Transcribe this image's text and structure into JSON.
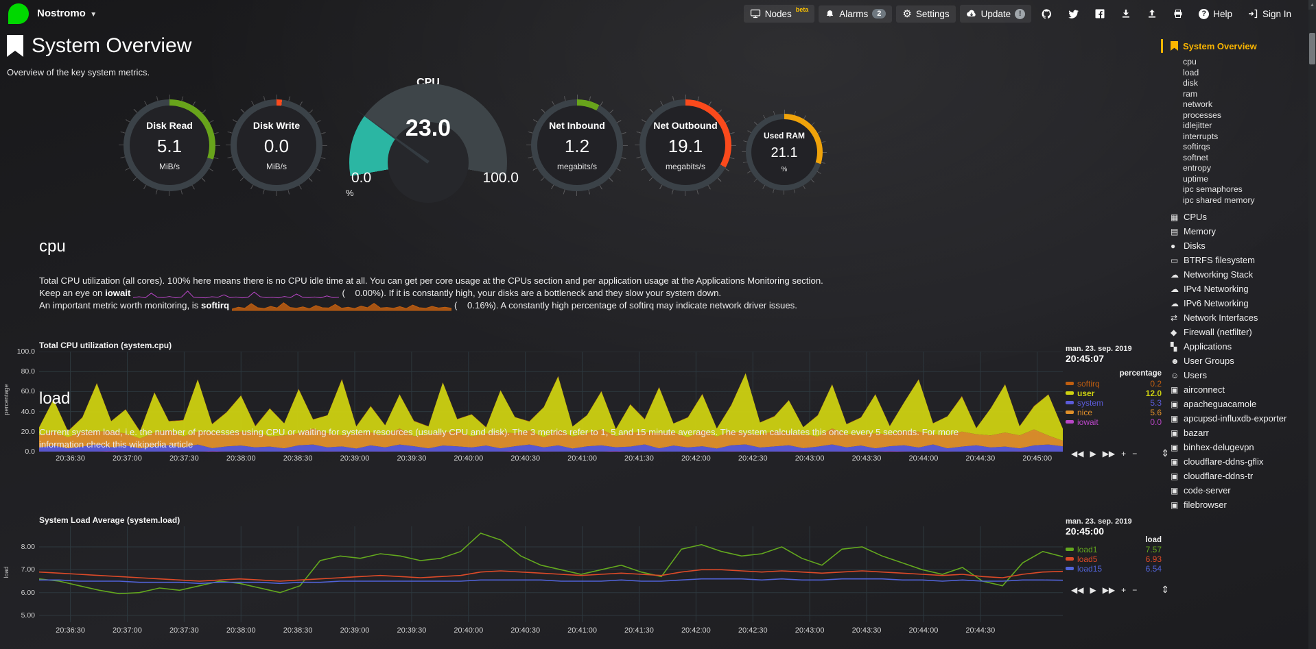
{
  "colors": {
    "accent": "#fbb600",
    "green": "#68a41b",
    "red": "#fb4a1c",
    "orange": "#f0a30a",
    "teal": "#2bb6a3",
    "track": "#3b4248"
  },
  "topbar": {
    "hostname": "Nostromo",
    "nodes_label": "Nodes",
    "nodes_beta": "beta",
    "alarms_label": "Alarms",
    "alarms_count": "2",
    "settings_label": "Settings",
    "update_label": "Update",
    "update_badge": "!",
    "help_label": "Help",
    "signin_label": "Sign In"
  },
  "header": {
    "title": "System Overview",
    "subtitle": "Overview of the key system metrics."
  },
  "gauges": [
    {
      "label": "Disk Read",
      "value": "5.1",
      "unit": "MiB/s",
      "color": "#68a41b",
      "arc_deg": 108,
      "small": false
    },
    {
      "label": "Disk Write",
      "value": "0.0",
      "unit": "MiB/s",
      "color": "#fb4a1c",
      "arc_deg": 7,
      "small": false
    },
    {
      "label": "Net Inbound",
      "value": "1.2",
      "unit": "megabits/s",
      "color": "#68a41b",
      "arc_deg": 29,
      "small": false
    },
    {
      "label": "Net Outbound",
      "value": "19.1",
      "unit": "megabits/s",
      "color": "#fb4a1c",
      "arc_deg": 119,
      "small": false
    },
    {
      "label": "Used RAM",
      "value": "21.1",
      "unit": "%",
      "color": "#f0a30a",
      "arc_deg": 108,
      "small": true
    }
  ],
  "cpu_gauge": {
    "title": "CPU",
    "value": "23.0",
    "min": "0.0",
    "max": "100.0",
    "unit": "%"
  },
  "sections": {
    "cpu": {
      "heading": "cpu",
      "d1": "Total CPU utilization (all cores). 100% here means there is no CPU idle time at all. You can get per core usage at the CPUs section and per application usage at the Applications Monitoring section.",
      "d2_pre": "Keep an eye on ",
      "d2_bold": "iowait",
      "d2_paren": "(",
      "d2_val": "0.00%",
      "d2_tail": "). If it is constantly high, your disks are a bottleneck and they slow your system down.",
      "d3_pre": "An important metric worth monitoring, is ",
      "d3_bold": "softirq",
      "d3_paren": "(",
      "d3_val": "0.16%",
      "d3_tail": "). A constantly high percentage of softirq may indicate network driver issues."
    },
    "load": {
      "heading": "load",
      "d1": "Current system load, i.e. the number of processes using CPU or waiting for system resources (usually CPU and disk). The 3 metrics refer to 1, 5 and 15 minute averages. The system calculates this once every 5 seconds. For more information check this ",
      "link": "wikipedia article"
    }
  },
  "sparklines": {
    "iowait": {
      "color": "#ba46c8",
      "values": [
        0.2,
        0.5,
        0.1,
        1.8,
        0.3,
        0.2,
        0.6,
        0.1,
        0.4,
        2.6,
        0.3,
        0.2,
        0.1,
        0.5,
        0.3,
        1.2,
        0.2,
        0.4,
        0.1,
        0.3,
        2.2,
        0.5,
        0.2,
        0.3,
        0.1,
        0.6,
        0.2,
        1.5,
        0.3,
        0.2,
        0.4,
        0.1,
        0.8,
        0.2,
        0.3
      ]
    },
    "softirq": {
      "color": "#c05e10",
      "values": [
        0.5,
        1.2,
        0.8,
        2.5,
        1.0,
        0.7,
        1.5,
        0.9,
        2.8,
        1.1,
        0.8,
        1.3,
        0.6,
        1.8,
        1.0,
        0.9,
        2.2,
        0.8,
        1.2,
        0.7,
        1.6,
        1.0,
        2.6,
        0.9,
        1.1,
        0.8,
        1.4,
        0.7,
        2.0,
        1.0,
        0.8,
        1.5,
        0.9,
        1.2,
        0.8
      ]
    }
  },
  "chart_controls": {
    "buttons": [
      "◀◀",
      "▶",
      "▶▶",
      "+",
      "−"
    ],
    "resize": "⇕"
  },
  "chart_data": [
    {
      "type": "area",
      "stacked": true,
      "title": "Total CPU utilization (system.cpu)",
      "ylabel": "percentage",
      "ylim": [
        0,
        100
      ],
      "ytick_vals": [
        100,
        80,
        60,
        40,
        20,
        0
      ],
      "ytick_labels": [
        "100.0",
        "80.0",
        "60.0",
        "40.0",
        "20.0",
        "0.0"
      ],
      "x_labels": [
        "20:36:30",
        "20:37:00",
        "20:37:30",
        "20:38:00",
        "20:38:30",
        "20:39:00",
        "20:39:30",
        "20:40:00",
        "20:40:30",
        "20:41:00",
        "20:41:30",
        "20:42:00",
        "20:42:30",
        "20:43:00",
        "20:43:30",
        "20:44:00",
        "20:44:30",
        "20:45:00"
      ],
      "legend": {
        "date": "man. 23. sep. 2019",
        "time": "20:45:07",
        "unit": "percentage",
        "items": [
          {
            "name": "softirq",
            "value": "0.2",
            "color": "#c05e10",
            "emphasis": false
          },
          {
            "name": "user",
            "value": "12.0",
            "color": "#cdd111",
            "emphasis": true
          },
          {
            "name": "system",
            "value": "5.3",
            "color": "#5b5bd8",
            "emphasis": false
          },
          {
            "name": "nice",
            "value": "5.6",
            "color": "#e0902a",
            "emphasis": false
          },
          {
            "name": "iowait",
            "value": "0.0",
            "color": "#ba46c8",
            "emphasis": false
          }
        ]
      },
      "series": [
        {
          "name": "iowait",
          "color": "#ba46c8",
          "values": [
            0.2,
            0.1,
            0.3,
            0.1,
            0.2,
            0.4,
            0.1,
            0.2,
            0.1,
            0.3,
            0.2,
            0.1,
            0.4,
            0.2,
            0.1,
            0.3,
            0.1,
            0.2,
            0.4,
            0.1,
            0.3,
            0.2,
            0.1,
            0.2,
            0.3,
            0.1,
            0.4,
            0.2,
            0.1,
            0.3,
            0.2,
            0.1,
            0.2,
            0.4,
            0.1,
            0.3,
            0.2,
            0.1,
            0.3,
            0.2,
            0.4,
            0.1,
            0.2,
            0.3,
            0.1,
            0.2,
            0.4,
            0.1,
            0.3,
            0.2,
            0.1,
            0.2,
            0.3,
            0.4,
            0.1,
            0.2,
            0.3,
            0.1,
            0.2,
            0.4,
            0.3,
            0.1,
            0.2,
            0.3,
            0.1,
            0.4,
            0.2,
            0.1,
            0.3,
            0.2,
            0.1,
            0.0
          ]
        },
        {
          "name": "system",
          "color": "#5b5bd8",
          "values": [
            4,
            6,
            3,
            5,
            7,
            4,
            6,
            3,
            5,
            6,
            4,
            7,
            3,
            5,
            6,
            4,
            5,
            3,
            6,
            7,
            4,
            5,
            3,
            6,
            4,
            7,
            5,
            3,
            6,
            5,
            4,
            6,
            3,
            5,
            7,
            4,
            6,
            3,
            5,
            6,
            4,
            5,
            7,
            3,
            6,
            4,
            5,
            3,
            6,
            7,
            4,
            5,
            6,
            3,
            5,
            7,
            4,
            6,
            3,
            5,
            6,
            4,
            7,
            3,
            5,
            6,
            4,
            5,
            3,
            6,
            7,
            5.3
          ]
        },
        {
          "name": "nice",
          "color": "#e0902a",
          "values": [
            12,
            14,
            11,
            15,
            13,
            16,
            12,
            10,
            14,
            15,
            11,
            13,
            16,
            12,
            14,
            15,
            10,
            13,
            12,
            16,
            14,
            11,
            15,
            13,
            12,
            16,
            10,
            14,
            13,
            15,
            11,
            12,
            16,
            13,
            14,
            10,
            15,
            12,
            13,
            16,
            11,
            14,
            12,
            15,
            13,
            10,
            16,
            12,
            14,
            11,
            13,
            15,
            12,
            14,
            10,
            16,
            13,
            11,
            15,
            12,
            14,
            16,
            10,
            13,
            15,
            11,
            12,
            14,
            13,
            16,
            9,
            5.6
          ]
        },
        {
          "name": "user",
          "color": "#cdd111",
          "values": [
            8,
            32,
            6,
            14,
            48,
            10,
            24,
            7,
            40,
            9,
            16,
            52,
            8,
            22,
            36,
            6,
            28,
            12,
            44,
            9,
            18,
            56,
            7,
            26,
            10,
            34,
            15,
            8,
            50,
            12,
            22,
            6,
            42,
            16,
            9,
            30,
            54,
            10,
            18,
            38,
            7,
            28,
            13,
            46,
            9,
            20,
            36,
            8,
            26,
            60,
            12,
            15,
            33,
            7,
            21,
            44,
            10,
            17,
            39,
            8,
            29,
            52,
            11,
            19,
            35,
            6,
            27,
            48,
            9,
            23,
            41,
            12
          ]
        },
        {
          "name": "softirq",
          "color": "#c05e10",
          "values": [
            0.3,
            0.2,
            0.4,
            0.3,
            0.5,
            0.2,
            0.3,
            0.4,
            0.2,
            0.3,
            0.5,
            0.2,
            0.4,
            0.3,
            0.2,
            0.5,
            0.3,
            0.2,
            0.4,
            0.3,
            0.2,
            0.5,
            0.3,
            0.4,
            0.2,
            0.3,
            0.5,
            0.2,
            0.3,
            0.4,
            0.2,
            0.5,
            0.3,
            0.2,
            0.4,
            0.3,
            0.5,
            0.2,
            0.3,
            0.4,
            0.2,
            0.3,
            0.5,
            0.4,
            0.2,
            0.3,
            0.4,
            0.2,
            0.5,
            0.3,
            0.2,
            0.4,
            0.3,
            0.2,
            0.5,
            0.3,
            0.4,
            0.2,
            0.3,
            0.5,
            0.2,
            0.4,
            0.3,
            0.2,
            0.5,
            0.3,
            0.2,
            0.4,
            0.3,
            0.5,
            0.2,
            0.2
          ]
        }
      ]
    },
    {
      "type": "line",
      "stacked": false,
      "title": "System Load Average (system.load)",
      "ylabel": "load",
      "ylim": [
        4.7,
        8.9
      ],
      "ytick_vals": [
        8,
        7,
        6,
        5
      ],
      "ytick_labels": [
        "8.00",
        "7.00",
        "6.00",
        "5.00"
      ],
      "x_labels": [
        "20:36:30",
        "20:37:00",
        "20:37:30",
        "20:38:00",
        "20:38:30",
        "20:39:00",
        "20:39:30",
        "20:40:00",
        "20:40:30",
        "20:41:00",
        "20:41:30",
        "20:42:00",
        "20:42:30",
        "20:43:00",
        "20:43:30",
        "20:44:00",
        "20:44:30"
      ],
      "legend": {
        "date": "man. 23. sep. 2019",
        "time": "20:45:00",
        "unit": "load",
        "items": [
          {
            "name": "load1",
            "value": "7.57",
            "color": "#63a81e",
            "emphasis": false
          },
          {
            "name": "load5",
            "value": "6.93",
            "color": "#dd4a28",
            "emphasis": false
          },
          {
            "name": "load15",
            "value": "6.54",
            "color": "#5163d8",
            "emphasis": false
          }
        ]
      },
      "series": [
        {
          "name": "load1",
          "color": "#63a81e",
          "values": [
            6.6,
            6.5,
            6.3,
            6.1,
            5.95,
            6.0,
            6.2,
            6.1,
            6.3,
            6.5,
            6.4,
            6.2,
            6.0,
            6.3,
            7.4,
            7.6,
            7.5,
            7.7,
            7.6,
            7.4,
            7.5,
            7.8,
            8.6,
            8.3,
            7.6,
            7.2,
            7.0,
            6.8,
            7.0,
            7.2,
            6.9,
            6.7,
            7.9,
            8.1,
            7.8,
            7.6,
            7.7,
            8.0,
            7.5,
            7.2,
            7.9,
            8.0,
            7.6,
            7.3,
            7.0,
            6.8,
            7.1,
            6.5,
            6.3,
            7.3,
            7.8,
            7.57
          ]
        },
        {
          "name": "load5",
          "color": "#dd4a28",
          "values": [
            6.9,
            6.85,
            6.8,
            6.75,
            6.7,
            6.65,
            6.6,
            6.55,
            6.5,
            6.55,
            6.6,
            6.55,
            6.5,
            6.55,
            6.6,
            6.65,
            6.7,
            6.75,
            6.7,
            6.65,
            6.7,
            6.75,
            6.9,
            6.95,
            6.9,
            6.85,
            6.8,
            6.75,
            6.8,
            6.85,
            6.8,
            6.75,
            6.9,
            7.0,
            7.0,
            6.95,
            6.9,
            6.95,
            6.9,
            6.85,
            6.9,
            6.95,
            6.9,
            6.85,
            6.8,
            6.75,
            6.8,
            6.7,
            6.65,
            6.8,
            6.9,
            6.93
          ]
        },
        {
          "name": "load15",
          "color": "#5163d8",
          "values": [
            6.55,
            6.55,
            6.5,
            6.5,
            6.5,
            6.45,
            6.45,
            6.45,
            6.4,
            6.45,
            6.45,
            6.45,
            6.4,
            6.45,
            6.45,
            6.5,
            6.5,
            6.5,
            6.5,
            6.5,
            6.5,
            6.5,
            6.55,
            6.55,
            6.55,
            6.55,
            6.5,
            6.5,
            6.5,
            6.55,
            6.5,
            6.5,
            6.55,
            6.6,
            6.6,
            6.6,
            6.55,
            6.6,
            6.55,
            6.55,
            6.6,
            6.6,
            6.6,
            6.55,
            6.55,
            6.5,
            6.55,
            6.5,
            6.5,
            6.55,
            6.55,
            6.54
          ]
        }
      ]
    }
  ],
  "sidebar": {
    "active_label": "System Overview",
    "sub_items": [
      "cpu",
      "load",
      "disk",
      "ram",
      "network",
      "processes",
      "idlejitter",
      "interrupts",
      "softirqs",
      "softnet",
      "entropy",
      "uptime",
      "ipc semaphores",
      "ipc shared memory"
    ],
    "items": [
      {
        "label": "CPUs",
        "icon": "microchip"
      },
      {
        "label": "Memory",
        "icon": "memory"
      },
      {
        "label": "Disks",
        "icon": "hdd"
      },
      {
        "label": "BTRFS filesystem",
        "icon": "folder"
      },
      {
        "label": "Networking Stack",
        "icon": "cloud"
      },
      {
        "label": "IPv4 Networking",
        "icon": "cloud"
      },
      {
        "label": "IPv6 Networking",
        "icon": "cloud"
      },
      {
        "label": "Network Interfaces",
        "icon": "exchange"
      },
      {
        "label": "Firewall (netfilter)",
        "icon": "shield"
      },
      {
        "label": "Applications",
        "icon": "apps"
      },
      {
        "label": "User Groups",
        "icon": "users"
      },
      {
        "label": "Users",
        "icon": "user"
      },
      {
        "label": "airconnect",
        "icon": "cube"
      },
      {
        "label": "apacheguacamole",
        "icon": "cube"
      },
      {
        "label": "apcupsd-influxdb-exporter",
        "icon": "cube"
      },
      {
        "label": "bazarr",
        "icon": "cube"
      },
      {
        "label": "binhex-delugevpn",
        "icon": "cube"
      },
      {
        "label": "cloudflare-ddns-gflix",
        "icon": "cube"
      },
      {
        "label": "cloudflare-ddns-tr",
        "icon": "cube"
      },
      {
        "label": "code-server",
        "icon": "cube"
      },
      {
        "label": "filebrowser",
        "icon": "cube"
      }
    ]
  }
}
